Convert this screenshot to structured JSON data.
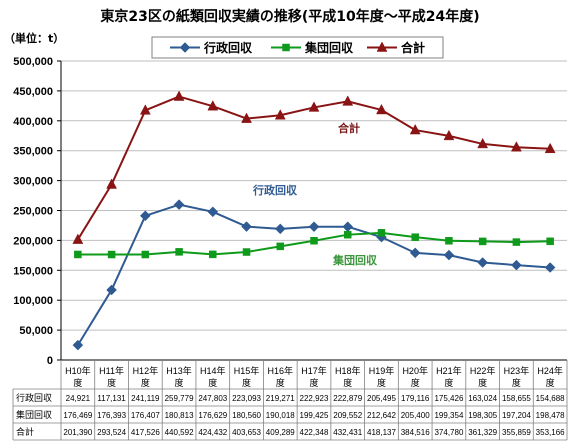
{
  "chart_data": {
    "type": "line",
    "title": "東京23区の紙類回収実績の推移(平成10年度～平成24年度)",
    "unit_label": "（単位：t）",
    "categories": [
      "H10年度",
      "H11年度",
      "H12年度",
      "H13年度",
      "H14年度",
      "H15年度",
      "H16年度",
      "H17年度",
      "H18年度",
      "H19年度",
      "H20年度",
      "H21年度",
      "H22年度",
      "H23年度",
      "H24年度"
    ],
    "ylim": [
      0,
      500000
    ],
    "yticks": [
      0,
      50000,
      100000,
      150000,
      200000,
      250000,
      300000,
      350000,
      400000,
      450000,
      500000
    ],
    "grid": true,
    "legend": "top",
    "series": [
      {
        "name": "行政回収",
        "color": "#2f5b92",
        "marker": "diamond",
        "values": [
          24921,
          117131,
          241119,
          259779,
          247803,
          223093,
          219271,
          222923,
          222879,
          205495,
          179116,
          175426,
          163024,
          158655,
          154688
        ]
      },
      {
        "name": "集団回収",
        "color": "#0e9a1a",
        "marker": "square",
        "values": [
          176469,
          176393,
          176407,
          180813,
          176629,
          180560,
          190018,
          199425,
          209552,
          212642,
          205400,
          199354,
          198305,
          197204,
          198478
        ]
      },
      {
        "name": "合計",
        "color": "#8a1414",
        "marker": "triangle",
        "values": [
          201390,
          293524,
          417526,
          440592,
          424432,
          403653,
          409289,
          422348,
          432431,
          418137,
          384516,
          374780,
          361329,
          355859,
          353166
        ]
      }
    ],
    "annotations": [
      {
        "text": "行政回収",
        "color": "#2f5b92"
      },
      {
        "text": "集団回収",
        "color": "#3a963a"
      },
      {
        "text": "合計",
        "color": "#7a1a1a"
      }
    ]
  }
}
